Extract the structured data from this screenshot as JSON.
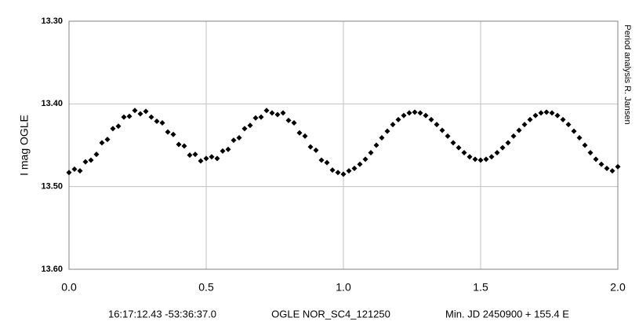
{
  "chart_data": {
    "type": "scatter",
    "y_label": "I mag OGLE",
    "annotation": "Period analysis  R. Jansen",
    "footer": [
      "16:17:12.43 -53:36:37.0",
      "OGLE NOR_SC4_121250",
      "Min. JD 2450900 + 155.4 E"
    ],
    "color": "#000000",
    "grid": true,
    "y_inverted": true,
    "xlim": [
      0,
      2
    ],
    "ylim": [
      13.3,
      13.6
    ],
    "xticks": [
      {
        "value": 0,
        "label": "0.0"
      },
      0.5,
      {
        "value": 1,
        "label": "1.0"
      },
      1.5,
      {
        "value": 2,
        "label": "2.0"
      }
    ],
    "yticks": [
      {
        "value": 13.3,
        "label": "13.30"
      },
      {
        "value": 13.4,
        "label": "13.40"
      },
      {
        "value": 13.5,
        "label": "13.50"
      },
      {
        "value": 13.6,
        "label": "13.60"
      }
    ],
    "x": [
      0,
      0.02,
      0.04,
      0.06,
      0.08,
      0.1,
      0.12,
      0.14,
      0.16,
      0.18,
      0.2,
      0.22,
      0.24,
      0.26,
      0.28,
      0.3,
      0.32,
      0.34,
      0.36,
      0.38,
      0.4,
      0.42,
      0.44,
      0.46,
      0.48,
      0.5,
      0.52,
      0.54,
      0.56,
      0.58,
      0.6,
      0.62,
      0.64,
      0.66,
      0.68,
      0.7,
      0.72,
      0.74,
      0.76,
      0.78,
      0.8,
      0.82,
      0.84,
      0.86,
      0.88,
      0.9,
      0.92,
      0.94,
      0.96,
      0.98,
      1,
      1.02,
      1.04,
      1.06,
      1.08,
      1.1,
      1.12,
      1.14,
      1.16,
      1.18,
      1.2,
      1.22,
      1.24,
      1.26,
      1.28,
      1.3,
      1.32,
      1.34,
      1.36,
      1.38,
      1.4,
      1.42,
      1.44,
      1.46,
      1.48,
      1.5,
      1.52,
      1.54,
      1.56,
      1.58,
      1.6,
      1.62,
      1.64,
      1.66,
      1.68,
      1.7,
      1.72,
      1.74,
      1.76,
      1.78,
      1.8,
      1.82,
      1.84,
      1.86,
      1.88,
      1.9,
      1.92,
      1.94,
      1.96,
      1.98,
      2
    ],
    "values": [
      13.483,
      13.479,
      13.481,
      13.47,
      13.468,
      13.461,
      13.447,
      13.443,
      13.43,
      13.427,
      13.416,
      13.415,
      13.408,
      13.412,
      13.409,
      13.416,
      13.421,
      13.423,
      13.434,
      13.437,
      13.449,
      13.451,
      13.462,
      13.461,
      13.469,
      13.466,
      13.464,
      13.466,
      13.457,
      13.455,
      13.444,
      13.441,
      13.43,
      13.426,
      13.417,
      13.416,
      13.408,
      13.411,
      13.413,
      13.411,
      13.42,
      13.423,
      13.435,
      13.439,
      13.452,
      13.456,
      13.468,
      13.471,
      13.48,
      13.483,
      13.485,
      13.481,
      13.478,
      13.473,
      13.467,
      13.459,
      13.45,
      13.441,
      13.433,
      13.425,
      13.419,
      13.414,
      13.411,
      13.41,
      13.411,
      13.414,
      13.419,
      13.425,
      13.432,
      13.439,
      13.447,
      13.453,
      13.459,
      13.464,
      13.467,
      13.468,
      13.467,
      13.464,
      13.459,
      13.453,
      13.447,
      13.439,
      13.432,
      13.425,
      13.419,
      13.414,
      13.411,
      13.41,
      13.411,
      13.414,
      13.419,
      13.425,
      13.433,
      13.441,
      13.45,
      13.459,
      13.467,
      13.473,
      13.478,
      13.481,
      13.476
    ]
  }
}
